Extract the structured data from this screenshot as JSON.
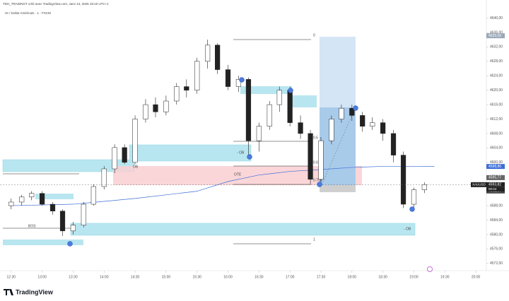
{
  "header": "TDH_TRADINGT créé avec TradingView.com, Janv 13, 2026 19:15 UTC+1",
  "chart_data": {
    "type": "candlestick",
    "title": "Or / Dollar Américain · 1 · FXCM",
    "symbol": "XAUUSD",
    "x": [
      12.5,
      12.67,
      12.83,
      13,
      13.17,
      13.33,
      13.5,
      13.67,
      13.83,
      14,
      14.17,
      14.33,
      14.5,
      14.67,
      14.83,
      15,
      15.17,
      15.33,
      15.5,
      15.67,
      15.83,
      16,
      16.17,
      16.33,
      16.5,
      16.67,
      16.83,
      17,
      17.17,
      17.33,
      17.5,
      17.67,
      17.83,
      18,
      18.17,
      18.33,
      18.5,
      18.67,
      18.83,
      19,
      19.17
    ],
    "ohlc": [
      [
        4588,
        4590,
        4587,
        4589
      ],
      [
        4589,
        4591,
        4588,
        4590.4
      ],
      [
        4590.4,
        4592,
        4589.5,
        4591.4
      ],
      [
        4591.4,
        4592,
        4588,
        4588.4
      ],
      [
        4588.4,
        4589,
        4585.5,
        4586.5
      ],
      [
        4586.5,
        4587,
        4579.6,
        4581
      ],
      [
        4581,
        4583.5,
        4580,
        4582.6
      ],
      [
        4582.6,
        4589,
        4582,
        4588.4
      ],
      [
        4588.4,
        4594,
        4588,
        4593.3
      ],
      [
        4593.3,
        4599,
        4592.5,
        4598.2
      ],
      [
        4598.2,
        4605,
        4597,
        4604.1
      ],
      [
        4604.1,
        4605,
        4599.5,
        4600
      ],
      [
        4600,
        4613,
        4599.5,
        4612
      ],
      [
        4612,
        4617.5,
        4611,
        4616
      ],
      [
        4616,
        4618,
        4612.5,
        4614
      ],
      [
        4614,
        4618.5,
        4613,
        4617
      ],
      [
        4617,
        4622,
        4616,
        4621
      ],
      [
        4621,
        4623,
        4618,
        4620
      ],
      [
        4620,
        4629,
        4619,
        4628
      ],
      [
        4628,
        4634,
        4626,
        4632.5
      ],
      [
        4632.5,
        4633,
        4624.5,
        4625.7
      ],
      [
        4625.7,
        4627,
        4620,
        4621
      ],
      [
        4621,
        4624,
        4619.5,
        4623
      ],
      [
        4623,
        4623.5,
        4601.5,
        4606
      ],
      [
        4606,
        4611,
        4603,
        4610
      ],
      [
        4610,
        4617,
        4609,
        4616
      ],
      [
        4616,
        4621,
        4614,
        4620
      ],
      [
        4620,
        4621,
        4610,
        4611
      ],
      [
        4611,
        4613,
        4606.5,
        4608
      ],
      [
        4608,
        4609,
        4594,
        4595.3
      ],
      [
        4595.3,
        4607,
        4594.5,
        4606
      ],
      [
        4606,
        4613,
        4605,
        4612
      ],
      [
        4612,
        4616,
        4611,
        4615
      ],
      [
        4615,
        4616,
        4611.5,
        4613
      ],
      [
        4613,
        4614,
        4608.5,
        4610
      ],
      [
        4610,
        4612.5,
        4609,
        4611
      ],
      [
        4611,
        4612,
        4606,
        4608
      ],
      [
        4608,
        4609,
        4600,
        4602
      ],
      [
        4602,
        4603,
        4587.3,
        4588.4
      ],
      [
        4588.4,
        4593,
        4587.5,
        4592.4
      ],
      [
        4592.4,
        4594.5,
        4591.5,
        4593.82
      ]
    ],
    "up_color": "#222222",
    "down_color": "#222222",
    "ma": {
      "color": "#3d6fd6",
      "x": [
        12.5,
        13.5,
        14.5,
        15.5,
        16,
        16.5,
        17,
        17.5,
        18,
        18.5,
        19,
        19.33
      ],
      "values": [
        4588,
        4588.4,
        4590,
        4592,
        4594.7,
        4596.5,
        4597.5,
        4598,
        4598.6,
        4598.9,
        4598.9,
        4598.86
      ]
    },
    "ylim": [
      4570,
      4645
    ],
    "yticks": [
      {
        "value": 4572,
        "label": "4572,00"
      },
      {
        "value": 4576,
        "label": "4576,00"
      },
      {
        "value": 4580,
        "label": "4580,00"
      },
      {
        "value": 4584,
        "label": "4584,00"
      },
      {
        "value": 4588,
        "label": "4588,00"
      },
      {
        "value": 4592,
        "label": "4592,00"
      },
      {
        "value": 4596,
        "label": "4596,00"
      },
      {
        "value": 4600,
        "label": "4600,00"
      },
      {
        "value": 4604,
        "label": "4604,00"
      },
      {
        "value": 4608,
        "label": "4608,00"
      },
      {
        "value": 4612,
        "label": "4612,00"
      },
      {
        "value": 4616,
        "label": "4616,00"
      },
      {
        "value": 4620,
        "label": "4620,00"
      },
      {
        "value": 4624,
        "label": "4624,00"
      },
      {
        "value": 4628,
        "label": "4628,00"
      },
      {
        "value": 4632,
        "label": "4632,00"
      },
      {
        "value": 4636,
        "label": "4636,00"
      },
      {
        "value": 4640,
        "label": "4640,00"
      }
    ],
    "xlim": [
      12.32,
      20.17
    ],
    "xticks": [
      {
        "value": 12.5,
        "label": "12:30"
      },
      {
        "value": 13,
        "label": "13:00"
      },
      {
        "value": 13.5,
        "label": "13:30"
      },
      {
        "value": 14,
        "label": "14:00"
      },
      {
        "value": 14.5,
        "label": "14:30"
      },
      {
        "value": 15,
        "label": "15:00"
      },
      {
        "value": 15.5,
        "label": "15:30"
      },
      {
        "value": 16,
        "label": "16:00"
      },
      {
        "value": 16.5,
        "label": "16:30"
      },
      {
        "value": 17,
        "label": "17:00"
      },
      {
        "value": 17.5,
        "label": "17:30"
      },
      {
        "value": 18,
        "label": "18:00"
      },
      {
        "value": 18.5,
        "label": "18:30"
      },
      {
        "value": 19,
        "label": "19:00"
      },
      {
        "value": 19.5,
        "label": "19:30"
      },
      {
        "value": 20,
        "label": "20:00"
      }
    ],
    "price_labels": [
      {
        "value": 4635.09,
        "label": "4635,09",
        "color": "#9aa8b8"
      },
      {
        "value": 4598.86,
        "label": "4598,86",
        "color": "#3d6fd6"
      },
      {
        "value": 4595.77,
        "label": "4595,77",
        "color": "#666666"
      },
      {
        "value": 4593.82,
        "label": "4593,82",
        "color": "#222222"
      },
      {
        "value": 4592.07,
        "label": "4592,07",
        "color": "#444444"
      }
    ],
    "countdown": "00:04",
    "annotations": {
      "ob1": "OB",
      "ob2": "- OB",
      "ob3": "- OB",
      "bos": "BOS",
      "ote": "OTE",
      "f0": "0",
      "f05": "0.5",
      "f618": "0.618",
      "f705": "0.705",
      "f1": "1"
    }
  },
  "footer": "TradingView"
}
